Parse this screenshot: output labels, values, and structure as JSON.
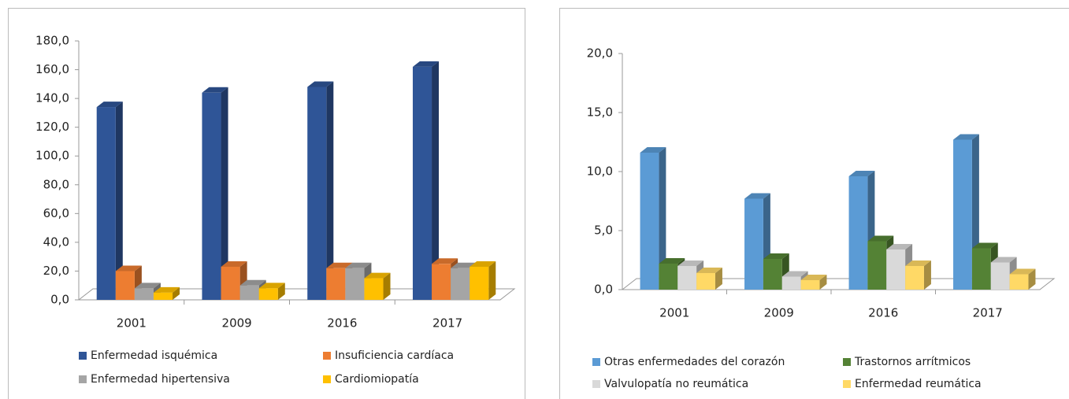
{
  "chart_data": [
    {
      "type": "bar",
      "three_d": true,
      "legend": "bottom",
      "categories": [
        "2001",
        "2009",
        "2016",
        "2017"
      ],
      "ylim": [
        0,
        180
      ],
      "yticks": [
        {
          "value": 0,
          "label": "0,0"
        },
        {
          "value": 20,
          "label": "20,0"
        },
        {
          "value": 40,
          "label": "40,0"
        },
        {
          "value": 60,
          "label": "60,0"
        },
        {
          "value": 80,
          "label": "80,0"
        },
        {
          "value": 100,
          "label": "100,0"
        },
        {
          "value": 120,
          "label": "120,0"
        },
        {
          "value": 140,
          "label": "140,0"
        },
        {
          "value": 160,
          "label": "160,0"
        },
        {
          "value": 180,
          "label": "180,0"
        }
      ],
      "series": [
        {
          "name": "Enfermedad isquémica",
          "color": "#2f5597",
          "values": [
            134,
            144,
            148,
            162
          ]
        },
        {
          "name": "Insuficiencia cardíaca",
          "color": "#ed7d31",
          "values": [
            20,
            23,
            22,
            25
          ]
        },
        {
          "name": "Enfermedad hipertensiva",
          "color": "#a5a5a5",
          "values": [
            8,
            10,
            22,
            22
          ]
        },
        {
          "name": "Cardiomiopatía",
          "color": "#ffc000",
          "values": [
            5,
            8,
            15,
            23
          ]
        }
      ]
    },
    {
      "type": "bar",
      "three_d": true,
      "legend": "bottom",
      "categories": [
        "2001",
        "2009",
        "2016",
        "2017"
      ],
      "ylim": [
        0,
        20
      ],
      "yticks": [
        {
          "value": 0,
          "label": "0,0"
        },
        {
          "value": 5,
          "label": "5,0"
        },
        {
          "value": 10,
          "label": "10,0"
        },
        {
          "value": 15,
          "label": "15,0"
        },
        {
          "value": 20,
          "label": "20,0"
        }
      ],
      "series": [
        {
          "name": "Otras enfermedades del corazón",
          "color": "#5b9bd5",
          "values": [
            11.6,
            7.7,
            9.6,
            12.7
          ]
        },
        {
          "name": "Trastornos arrítmicos",
          "color": "#548235",
          "values": [
            2.2,
            2.6,
            4.1,
            3.5
          ]
        },
        {
          "name": "Valvulopatía no reumática",
          "color": "#d9d9d9",
          "values": [
            2.0,
            1.1,
            3.4,
            2.3
          ]
        },
        {
          "name": "Enfermedad reumática",
          "color": "#ffd966",
          "values": [
            1.4,
            0.8,
            2.0,
            1.3
          ]
        }
      ]
    }
  ]
}
